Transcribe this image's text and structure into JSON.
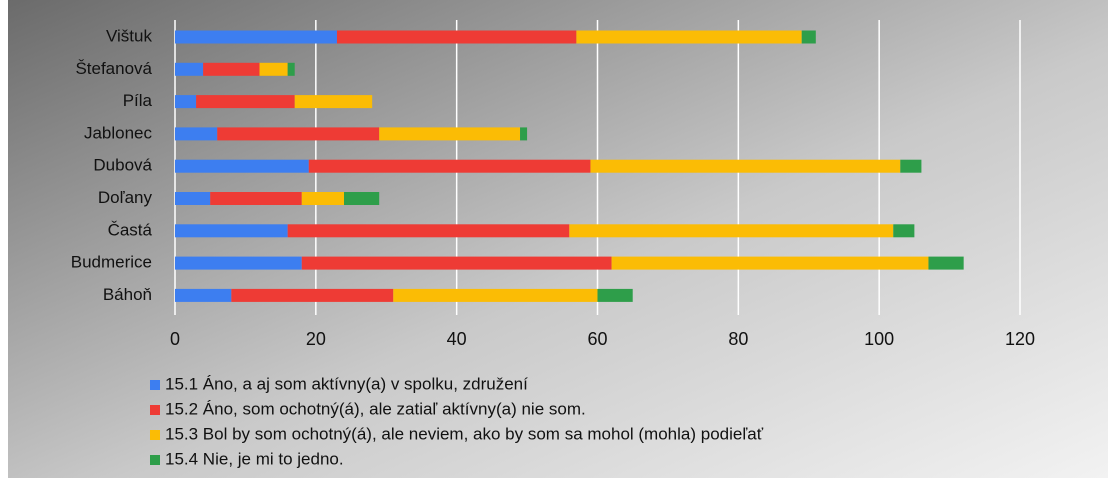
{
  "chart_data": {
    "type": "stacked_bar_horizontal",
    "categories": [
      "Vištuk",
      "Štefanová",
      "Píla",
      "Jablonec",
      "Dubová",
      "Doľany",
      "Častá",
      "Budmerice",
      "Báhoň"
    ],
    "series": [
      {
        "name": "15.1 Áno, a aj som aktívny(a) v spolku, združení",
        "color": "#3d7ef0",
        "values": [
          23,
          4,
          3,
          6,
          19,
          5,
          16,
          18,
          8
        ]
      },
      {
        "name": "15.2 Áno, som ochotný(á), ale zatiaľ aktívny(a) nie som.",
        "color": "#ee3b35",
        "values": [
          34,
          8,
          14,
          23,
          40,
          13,
          40,
          44,
          23
        ]
      },
      {
        "name": "15.3 Bol by som ochotný(á), ale neviem, ako by som sa mohol (mohla) podieľať",
        "color": "#fbbc05",
        "values": [
          32,
          4,
          11,
          20,
          44,
          6,
          46,
          45,
          29
        ]
      },
      {
        "name": "15.4 Nie, je mi to jedno.",
        "color": "#2e9e4a",
        "values": [
          2,
          1,
          0,
          1,
          3,
          5,
          3,
          5,
          5
        ]
      }
    ],
    "xlim": [
      0,
      120
    ],
    "xticks": [
      0,
      20,
      40,
      60,
      80,
      100,
      120
    ],
    "grid": true
  }
}
